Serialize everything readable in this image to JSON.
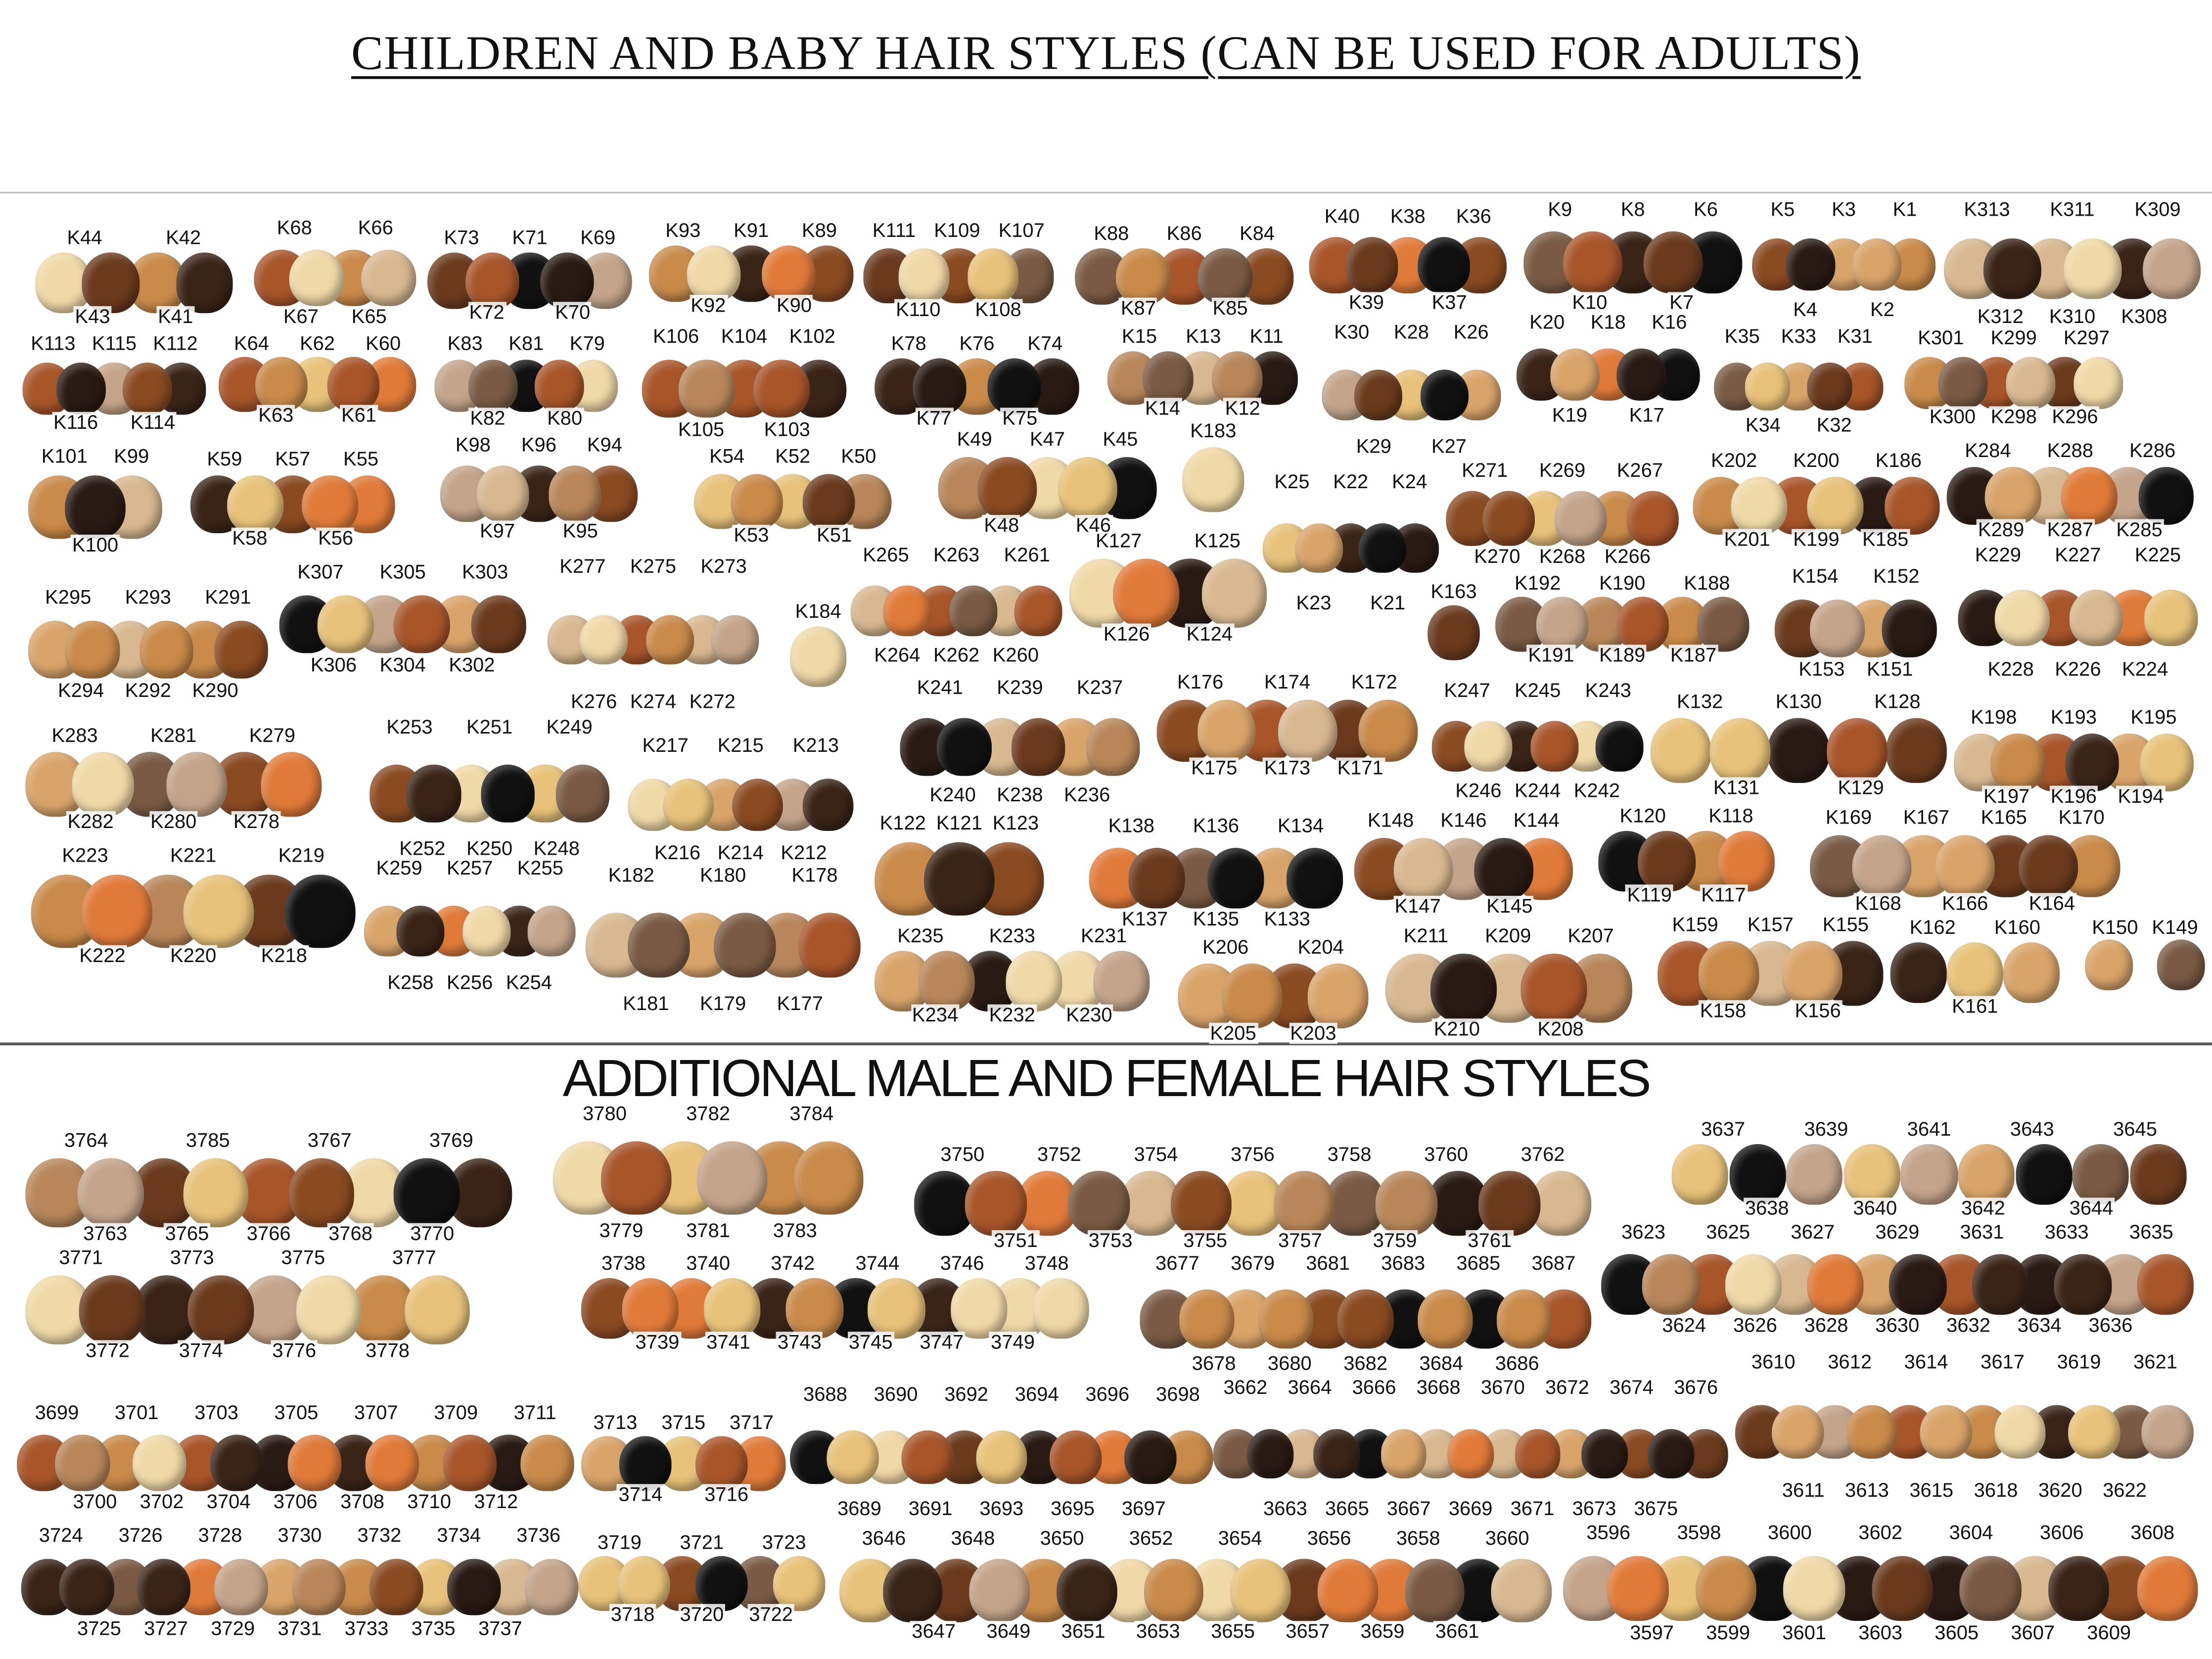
{
  "title": "CHILDREN AND BABY HAIR STYLES (CAN BE USED FOR ADULTS)",
  "section2_title": "ADDITIONAL MALE AND FEMALE HAIR STYLES",
  "palette": [
    "#e8c27a",
    "#c98a4a",
    "#8a4a22",
    "#3a2418",
    "#111111",
    "#d9a46a",
    "#a8552a",
    "#f0d9a8",
    "#6b3a1e",
    "#c4a48a",
    "#e07a3a",
    "#2a1a14",
    "#b8865a",
    "#d8b890",
    "#7a5a44"
  ],
  "children_groups": [
    {
      "top": [
        "K44",
        "K42"
      ],
      "bottom": [
        "K43",
        "K41"
      ]
    },
    {
      "top": [
        "K68",
        "K66"
      ],
      "bottom": [
        "K67",
        "K65"
      ]
    },
    {
      "top": [
        "K73",
        "K71",
        "K69"
      ],
      "bottom": [
        "K72",
        "K70"
      ]
    },
    {
      "top": [
        "K93",
        "K91",
        "K89"
      ],
      "bottom": [
        "K92",
        "K90"
      ]
    },
    {
      "top": [
        "K111",
        "K109",
        "K107"
      ],
      "bottom": [
        "K110",
        "K108"
      ]
    },
    {
      "top": [
        "K88",
        "K86",
        "K84"
      ],
      "bottom": [
        "K87",
        "K85"
      ]
    },
    {
      "top": [
        "K40",
        "K38",
        "K36"
      ],
      "bottom": [
        "K39",
        "K37"
      ]
    },
    {
      "top": [
        "K9",
        "K8",
        "K6"
      ],
      "bottom": [
        "K10",
        "K7"
      ]
    },
    {
      "top": [
        "K5",
        "K3",
        "K1"
      ],
      "bottom": [
        "K4",
        "K2"
      ]
    },
    {
      "top": [
        "K313",
        "K311",
        "K309"
      ],
      "bottom": [
        "K312",
        "K310",
        "K308"
      ]
    },
    {
      "top": [
        "K113",
        "K115",
        "K112"
      ],
      "bottom": [
        "K116",
        "K114"
      ]
    },
    {
      "top": [
        "K64",
        "K62",
        "K60"
      ],
      "bottom": [
        "K63",
        "K61"
      ]
    },
    {
      "top": [
        "K83",
        "K81",
        "K79"
      ],
      "bottom": [
        "K82",
        "K80"
      ]
    },
    {
      "top": [
        "K106",
        "K104",
        "K102"
      ],
      "bottom": [
        "K105",
        "K103"
      ]
    },
    {
      "top": [
        "K78",
        "K76",
        "K74"
      ],
      "bottom": [
        "K77",
        "K75"
      ]
    },
    {
      "top": [
        "K15",
        "K13",
        "K11"
      ],
      "bottom": [
        "K14",
        "K12"
      ]
    },
    {
      "top": [
        "K30",
        "K28",
        "K26"
      ],
      "bottom": [
        "K29",
        "K27"
      ]
    },
    {
      "top": [
        "K20",
        "K18",
        "K16"
      ],
      "bottom": [
        "K19",
        "K17"
      ]
    },
    {
      "top": [
        "K35",
        "K33",
        "K31"
      ],
      "bottom": [
        "K34",
        "K32"
      ]
    },
    {
      "top": [
        "K301",
        "K299",
        "K297"
      ],
      "bottom": [
        "K300",
        "K298",
        "K296"
      ]
    },
    {
      "top": [
        "K101",
        "K99"
      ],
      "bottom": [
        "K100"
      ]
    },
    {
      "top": [
        "K59",
        "K57",
        "K55"
      ],
      "bottom": [
        "K58",
        "K56"
      ]
    },
    {
      "top": [
        "K98",
        "K96",
        "K94"
      ],
      "bottom": [
        "K97",
        "K95"
      ]
    },
    {
      "top": [
        "K54",
        "K52",
        "K50"
      ],
      "bottom": [
        "K53",
        "K51"
      ]
    },
    {
      "top": [
        "K49",
        "K47",
        "K45"
      ],
      "bottom": [
        "K48",
        "K46"
      ]
    },
    {
      "top": [
        "K183"
      ],
      "bottom": []
    },
    {
      "top": [
        "K25",
        "K22",
        "K24"
      ],
      "bottom": [
        "K23",
        "K21"
      ]
    },
    {
      "top": [
        "K271",
        "K269",
        "K267"
      ],
      "bottom": [
        "K270",
        "K268",
        "K266"
      ]
    },
    {
      "top": [
        "K202",
        "K200",
        "K186"
      ],
      "bottom": [
        "K201",
        "K199",
        "K185"
      ]
    },
    {
      "top": [
        "K284",
        "K288",
        "K286"
      ],
      "bottom": [
        "K289",
        "K287",
        "K285"
      ]
    },
    {
      "top": [
        "K295",
        "K293",
        "K291"
      ],
      "bottom": [
        "K294",
        "K292",
        "K290"
      ]
    },
    {
      "top": [
        "K307",
        "K305",
        "K303"
      ],
      "bottom": [
        "K306",
        "K304",
        "K302"
      ]
    },
    {
      "top": [
        "K277",
        "K275",
        "K273"
      ],
      "bottom": [
        "K276",
        "K274",
        "K272"
      ]
    },
    {
      "top": [
        "K184"
      ],
      "bottom": []
    },
    {
      "top": [
        "K265",
        "K263",
        "K261"
      ],
      "bottom": [
        "K264",
        "K262",
        "K260"
      ]
    },
    {
      "top": [
        "K127",
        "K125"
      ],
      "bottom": [
        "K126",
        "K124"
      ]
    },
    {
      "top": [
        "K163"
      ],
      "bottom": []
    },
    {
      "top": [
        "K192",
        "K190",
        "K188"
      ],
      "bottom": [
        "K191",
        "K189",
        "K187"
      ]
    },
    {
      "top": [
        "K154",
        "K152"
      ],
      "bottom": [
        "K153",
        "K151"
      ]
    },
    {
      "top": [
        "K229",
        "K227",
        "K225"
      ],
      "bottom": [
        "K228",
        "K226",
        "K224"
      ]
    },
    {
      "top": [
        "K283",
        "K281",
        "K279"
      ],
      "bottom": [
        "K282",
        "K280",
        "K278"
      ]
    },
    {
      "top": [
        "K253",
        "K251",
        "K249"
      ],
      "bottom": [
        "K252",
        "K250",
        "K248"
      ]
    },
    {
      "top": [
        "K217",
        "K215",
        "K213"
      ],
      "bottom": [
        "K216",
        "K214",
        "K212"
      ]
    },
    {
      "top": [
        "K241",
        "K239",
        "K237"
      ],
      "bottom": [
        "K240",
        "K238",
        "K236"
      ]
    },
    {
      "top": [
        "K176",
        "K174",
        "K172"
      ],
      "bottom": [
        "K175",
        "K173",
        "K171"
      ]
    },
    {
      "top": [
        "K247",
        "K245",
        "K243"
      ],
      "bottom": [
        "K246",
        "K244",
        "K242"
      ]
    },
    {
      "top": [
        "K132",
        "K130",
        "K128"
      ],
      "bottom": [
        "K131",
        "K129"
      ]
    },
    {
      "top": [
        "K198",
        "K193",
        "K195"
      ],
      "bottom": [
        "K197",
        "K196",
        "K194"
      ]
    },
    {
      "top": [
        "K223",
        "K221",
        "K219"
      ],
      "bottom": [
        "K222",
        "K220",
        "K218"
      ]
    },
    {
      "top": [
        "K259",
        "K257",
        "K255"
      ],
      "bottom": [
        "K258",
        "K256",
        "K254"
      ]
    },
    {
      "top": [
        "K182",
        "K180",
        "K178"
      ],
      "bottom": [
        "K181",
        "K179",
        "K177"
      ]
    },
    {
      "top": [
        "K122",
        "K121",
        "K123"
      ],
      "bottom": []
    },
    {
      "top": [
        "K138",
        "K136",
        "K134"
      ],
      "bottom": [
        "K137",
        "K135",
        "K133"
      ]
    },
    {
      "top": [
        "K148",
        "K146",
        "K144"
      ],
      "bottom": [
        "K147",
        "K145"
      ]
    },
    {
      "top": [
        "K120",
        "K118"
      ],
      "bottom": [
        "K119",
        "K117"
      ]
    },
    {
      "top": [
        "K169",
        "K167",
        "K165",
        "K170"
      ],
      "bottom": [
        "K168",
        "K166",
        "K164"
      ]
    },
    {
      "top": [
        "K235",
        "K233",
        "K231"
      ],
      "bottom": [
        "K234",
        "K232",
        "K230"
      ]
    },
    {
      "top": [
        "K206",
        "K204"
      ],
      "bottom": [
        "K205",
        "K203"
      ]
    },
    {
      "top": [
        "K211",
        "K209",
        "K207"
      ],
      "bottom": [
        "K210",
        "K208"
      ]
    },
    {
      "top": [
        "K159",
        "K157",
        "K155"
      ],
      "bottom": [
        "K158",
        "K156"
      ]
    },
    {
      "top": [
        "K162",
        "K160"
      ],
      "bottom": [
        "K161"
      ]
    },
    {
      "top": [
        "K150",
        "K149"
      ],
      "bottom": []
    }
  ],
  "additional_groups": [
    {
      "top": [
        "3764",
        "3785",
        "3767",
        "3769"
      ],
      "bottom": [
        "3763",
        "3765",
        "3766",
        "3768",
        "3770"
      ]
    },
    {
      "top": [
        "3771",
        "3773",
        "3775",
        "3777"
      ],
      "bottom": [
        "3772",
        "3774",
        "3776",
        "3778"
      ]
    },
    {
      "top": [
        "3780",
        "3782",
        "3784"
      ],
      "bottom": [
        "3779",
        "3781",
        "3783"
      ]
    },
    {
      "top": [
        "3750",
        "3752",
        "3754",
        "3756",
        "3758",
        "3760",
        "3762"
      ],
      "bottom": [
        "3751",
        "3753",
        "3755",
        "3757",
        "3759",
        "3761"
      ]
    },
    {
      "top": [
        "3637",
        "3639",
        "3641",
        "3643",
        "3645"
      ],
      "bottom": [
        "3638",
        "3640",
        "3642",
        "3644"
      ]
    },
    {
      "top": [
        "3738",
        "3740",
        "3742",
        "3744",
        "3746",
        "3748"
      ],
      "bottom": [
        "3739",
        "3741",
        "3743",
        "3745",
        "3747",
        "3749"
      ]
    },
    {
      "top": [
        "3677",
        "3679",
        "3681",
        "3683",
        "3685",
        "3687"
      ],
      "bottom": [
        "3678",
        "3680",
        "3682",
        "3684",
        "3686"
      ]
    },
    {
      "top": [
        "3623",
        "3625",
        "3627",
        "3629",
        "3631",
        "3633",
        "3635"
      ],
      "bottom": [
        "3624",
        "3626",
        "3628",
        "3630",
        "3632",
        "3634",
        "3636"
      ]
    },
    {
      "top": [
        "3699",
        "3701",
        "3703",
        "3705",
        "3707",
        "3709",
        "3711"
      ],
      "bottom": [
        "3700",
        "3702",
        "3704",
        "3706",
        "3708",
        "3710",
        "3712"
      ]
    },
    {
      "top": [
        "3713",
        "3715",
        "3717"
      ],
      "bottom": [
        "3714",
        "3716"
      ]
    },
    {
      "top": [
        "3688",
        "3690",
        "3692",
        "3694",
        "3696",
        "3698"
      ],
      "bottom": [
        "3689",
        "3691",
        "3693",
        "3695",
        "3697"
      ]
    },
    {
      "top": [
        "3662",
        "3664",
        "3666",
        "3668",
        "3670",
        "3672",
        "3674",
        "3676"
      ],
      "bottom": [
        "3663",
        "3665",
        "3667",
        "3669",
        "3671",
        "3673",
        "3675"
      ]
    },
    {
      "top": [
        "3610",
        "3612",
        "3614",
        "3617",
        "3619",
        "3621"
      ],
      "bottom": [
        "3611",
        "3613",
        "3615",
        "3618",
        "3620",
        "3622"
      ]
    },
    {
      "top": [
        "3724",
        "3726",
        "3728",
        "3730",
        "3732",
        "3734",
        "3736"
      ],
      "bottom": [
        "3725",
        "3727",
        "3729",
        "3731",
        "3733",
        "3735",
        "3737"
      ]
    },
    {
      "top": [
        "3719",
        "3721",
        "3723"
      ],
      "bottom": [
        "3718",
        "3720",
        "3722"
      ]
    },
    {
      "top": [
        "3646",
        "3648",
        "3650",
        "3652",
        "3654",
        "3656",
        "3658",
        "3660"
      ],
      "bottom": [
        "3647",
        "3649",
        "3651",
        "3653",
        "3655",
        "3657",
        "3659",
        "3661"
      ]
    },
    {
      "top": [
        "3596",
        "3598",
        "3600",
        "3602",
        "3604",
        "3606",
        "3608"
      ],
      "bottom": [
        "3597",
        "3599",
        "3601",
        "3603",
        "3605",
        "3607",
        "3609"
      ]
    }
  ]
}
